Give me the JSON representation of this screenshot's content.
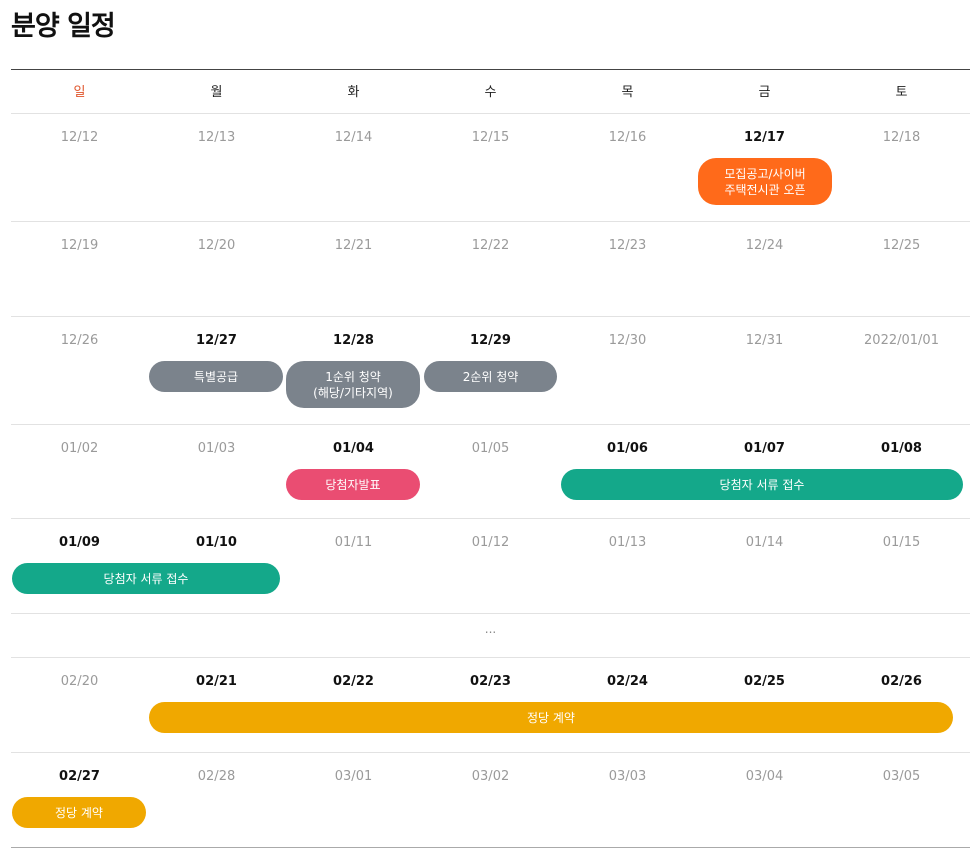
{
  "title": "분양 일정",
  "weekdays": [
    "일",
    "월",
    "화",
    "수",
    "목",
    "금",
    "토"
  ],
  "weeks": [
    {
      "dates": [
        "12/12",
        "12/13",
        "12/14",
        "12/15",
        "12/16",
        "12/17",
        "12/18"
      ],
      "emphasis": [
        5
      ]
    },
    {
      "dates": [
        "12/19",
        "12/20",
        "12/21",
        "12/22",
        "12/23",
        "12/24",
        "12/25"
      ],
      "emphasis": []
    },
    {
      "dates": [
        "12/26",
        "12/27",
        "12/28",
        "12/29",
        "12/30",
        "12/31",
        "2022/01/01"
      ],
      "emphasis": [
        1,
        2,
        3
      ]
    },
    {
      "dates": [
        "01/02",
        "01/03",
        "01/04",
        "01/05",
        "01/06",
        "01/07",
        "01/08"
      ],
      "emphasis": [
        2,
        4,
        5,
        6
      ]
    },
    {
      "dates": [
        "01/09",
        "01/10",
        "01/11",
        "01/12",
        "01/13",
        "01/14",
        "01/15"
      ],
      "emphasis": [
        0,
        1
      ]
    },
    {
      "dates": [
        "02/20",
        "02/21",
        "02/22",
        "02/23",
        "02/24",
        "02/25",
        "02/26"
      ],
      "emphasis": [
        1,
        2,
        3,
        4,
        5,
        6
      ]
    },
    {
      "dates": [
        "02/27",
        "02/28",
        "03/01",
        "03/02",
        "03/03",
        "03/04",
        "03/05"
      ],
      "emphasis": [
        0
      ]
    }
  ],
  "ellipsis": "...",
  "colors": {
    "orange": "#ff6a1a",
    "gray": "#7b838c",
    "pink": "#ea4d72",
    "green": "#14a88a",
    "yellow": "#f0a800"
  },
  "events": [
    {
      "label": "모집공고/사이버\n주택전시관 오픈",
      "color": "orange"
    },
    {
      "label": "특별공급",
      "color": "gray"
    },
    {
      "label": "1순위 청약\n(해당/기타지역)",
      "color": "gray"
    },
    {
      "label": "2순위 청약",
      "color": "gray"
    },
    {
      "label": "당첨자발표",
      "color": "pink"
    },
    {
      "label": "당첨자 서류 접수",
      "color": "green"
    },
    {
      "label": "당첨자 서류 접수",
      "color": "green"
    },
    {
      "label": "정당 계약",
      "color": "yellow"
    },
    {
      "label": "정당 계약",
      "color": "yellow"
    }
  ]
}
